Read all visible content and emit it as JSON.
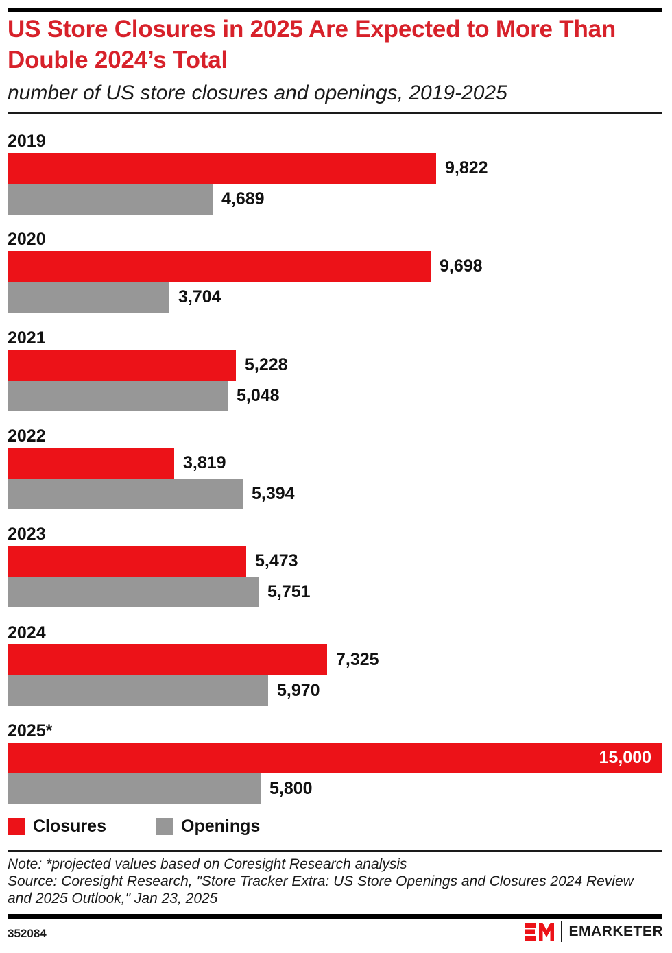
{
  "header": {
    "title": "US Store Closures in 2025 Are Expected to More Than Double 2024’s Total",
    "subtitle": "number of US store closures and openings, 2019-2025"
  },
  "chart_data": {
    "type": "bar",
    "orientation": "horizontal",
    "title": "US Store Closures in 2025 Are Expected to More Than Double 2024’s Total",
    "subtitle": "number of US store closures and openings, 2019-2025",
    "categories": [
      "2019",
      "2020",
      "2021",
      "2022",
      "2023",
      "2024",
      "2025*"
    ],
    "series": [
      {
        "name": "Closures",
        "color": "#ec1218",
        "values": [
          9822,
          9698,
          5228,
          3819,
          5473,
          7325,
          15000
        ],
        "display": [
          "9,822",
          "9,698",
          "5,228",
          "3,819",
          "5,473",
          "7,325",
          "15,000"
        ]
      },
      {
        "name": "Openings",
        "color": "#979797",
        "values": [
          4689,
          3704,
          5048,
          5394,
          5751,
          5970,
          5800
        ],
        "display": [
          "4,689",
          "3,704",
          "5,048",
          "5,394",
          "5,751",
          "5,970",
          "5,800"
        ]
      }
    ],
    "xlim": [
      0,
      15000
    ],
    "grid": false,
    "legend_position": "bottom",
    "value_labels": "outside-end (15,000 inside-end, white)"
  },
  "legend": {
    "items": [
      {
        "label": "Closures",
        "color": "#ec1218"
      },
      {
        "label": "Openings",
        "color": "#979797"
      }
    ]
  },
  "notes": {
    "note": "Note: *projected values based on Coresight Research analysis",
    "source": "Source: Coresight Research, \"Store Tracker Extra: US Store Openings and Closures 2024 Review and 2025 Outlook,\" Jan 23, 2025"
  },
  "footer": {
    "chart_id": "352084",
    "brand": "EMARKETER"
  },
  "colors": {
    "title_red": "#d7212a",
    "bar_red": "#ec1218",
    "bar_gray": "#979797",
    "ink": "#111111"
  }
}
